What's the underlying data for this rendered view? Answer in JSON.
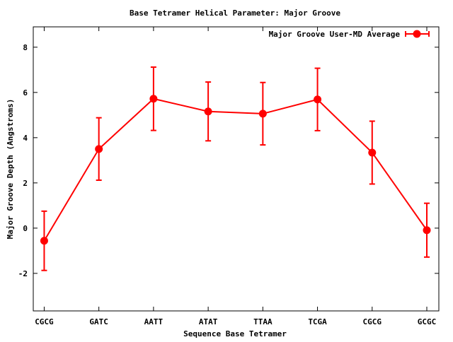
{
  "chart_data": {
    "type": "line",
    "title": "Base Tetramer Helical Parameter: Major Groove",
    "xlabel": "Sequence Base Tetramer",
    "ylabel": "Major Groove Depth (Angstroms)",
    "categories": [
      "CGCG",
      "GATC",
      "AATT",
      "ATAT",
      "TTAA",
      "TCGA",
      "CGCG",
      "GCGC"
    ],
    "series": [
      {
        "name": "Major Groove User-MD Average",
        "values": [
          -0.56,
          3.5,
          5.72,
          5.16,
          5.06,
          5.69,
          3.34,
          -0.09
        ],
        "errors": [
          1.31,
          1.38,
          1.4,
          1.3,
          1.38,
          1.38,
          1.39,
          1.19
        ],
        "color": "#ff0000"
      }
    ],
    "ylim": [
      -3.66,
      8.9
    ],
    "yticks": [
      -2,
      0,
      2,
      4,
      6,
      8
    ],
    "grid": false,
    "legend": "top-right"
  }
}
